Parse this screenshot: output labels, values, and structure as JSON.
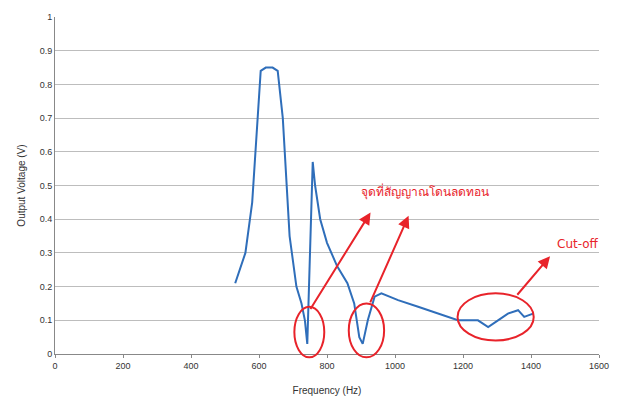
{
  "chart_data": {
    "type": "line",
    "x_label": "Frequency (Hz)",
    "y_label": "Output Voltage (V)",
    "x": [
      530,
      560,
      580,
      595,
      605,
      620,
      640,
      655,
      670,
      690,
      710,
      725,
      735,
      742,
      750,
      758,
      765,
      780,
      800,
      830,
      860,
      880,
      895,
      905,
      920,
      940,
      960,
      1009,
      1068,
      1126,
      1185,
      1244,
      1274,
      1303,
      1332,
      1362,
      1380,
      1406
    ],
    "values": [
      0.21,
      0.3,
      0.45,
      0.7,
      0.84,
      0.85,
      0.85,
      0.84,
      0.7,
      0.35,
      0.2,
      0.15,
      0.1,
      0.03,
      0.3,
      0.57,
      0.5,
      0.4,
      0.33,
      0.26,
      0.21,
      0.15,
      0.05,
      0.03,
      0.1,
      0.17,
      0.18,
      0.16,
      0.14,
      0.12,
      0.1,
      0.1,
      0.08,
      0.1,
      0.12,
      0.13,
      0.11,
      0.12
    ],
    "color": "#2f6eba",
    "xlim": [
      0,
      1600
    ],
    "xticks": [
      0,
      200,
      400,
      600,
      800,
      1000,
      1200,
      1400,
      1600
    ],
    "ylim": [
      0,
      1
    ],
    "yticks": [
      0,
      0.1,
      0.2,
      0.3,
      0.4,
      0.5,
      0.6,
      0.7,
      0.8,
      0.9,
      1
    ],
    "grid": true,
    "annotations": [
      "จุดที่สัญญาณโดนลดทอน",
      "Cut-off"
    ]
  }
}
